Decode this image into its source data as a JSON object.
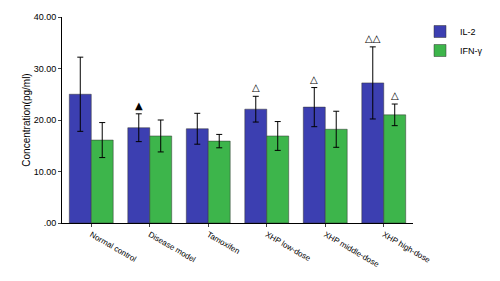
{
  "chart_data": {
    "type": "bar",
    "y_label": "Concentration(pg/ml)",
    "categories": [
      "Normal control",
      "Disease model",
      "Tamoxifen",
      "XHP low-dose",
      "XHP middle-dose",
      "XHP high-dose"
    ],
    "series": [
      {
        "name": "IL-2",
        "color": "#3c3fb1",
        "values": [
          25.0,
          18.5,
          18.3,
          22.1,
          22.5,
          27.2
        ],
        "errors": [
          7.2,
          2.7,
          3.0,
          2.5,
          3.8,
          7.0
        ]
      },
      {
        "name": "IFN-γ",
        "color": "#3db54b",
        "values": [
          16.1,
          16.9,
          15.9,
          16.9,
          18.2,
          21.0
        ],
        "errors": [
          3.4,
          3.1,
          1.3,
          2.8,
          3.5,
          2.1
        ]
      }
    ],
    "ylim": [
      0,
      40
    ],
    "yticks": [
      {
        "value": 0,
        "label": ".00"
      },
      {
        "value": 10,
        "label": "10.00"
      },
      {
        "value": 20,
        "label": "20.00"
      },
      {
        "value": 30,
        "label": "30.00"
      },
      {
        "value": 40,
        "label": "40.00"
      }
    ],
    "grid": false,
    "legend": "top right",
    "annotations": [
      {
        "text": "▲",
        "category": "Disease model",
        "series": "IL-2"
      },
      {
        "text": "△",
        "category": "XHP low-dose",
        "series": "IL-2"
      },
      {
        "text": "△",
        "category": "XHP middle-dose",
        "series": "IL-2"
      },
      {
        "text": "△△",
        "category": "XHP high-dose",
        "series": "IL-2"
      },
      {
        "text": "△",
        "category": "XHP high-dose",
        "series": "IFN-γ"
      }
    ]
  }
}
